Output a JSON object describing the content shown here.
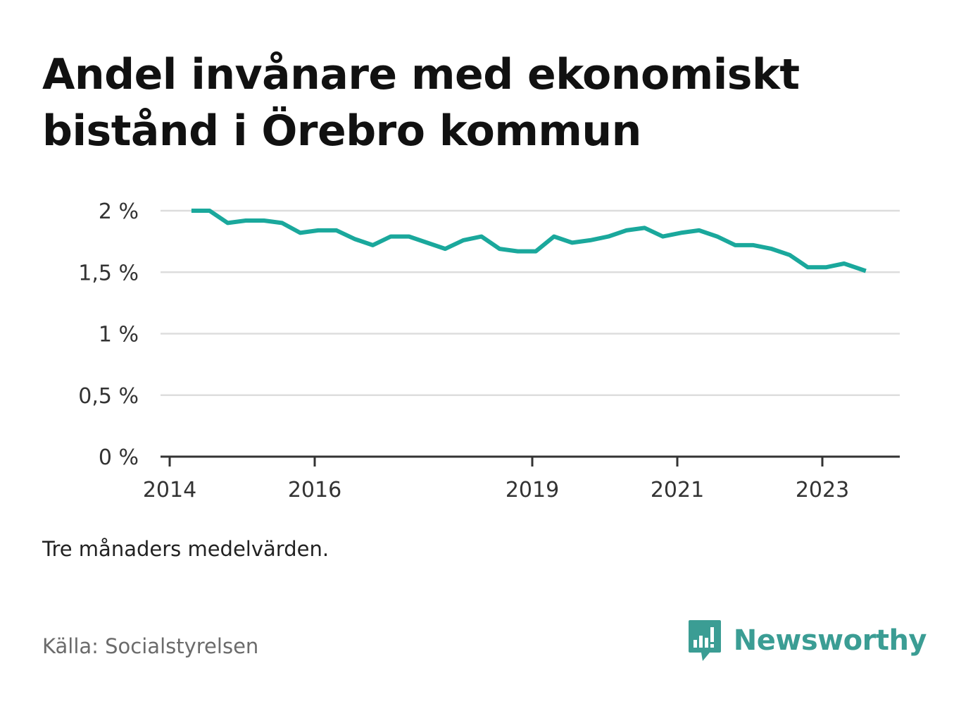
{
  "title": "Andel invånare med ekonomiskt bistånd i Örebro kommun",
  "note": "Tre månaders medelvärden.",
  "source": "Källa: Socialstyrelsen",
  "brand": {
    "name": "Newsworthy",
    "icon": "newsworthy-logo-icon",
    "color": "#3b9d94"
  },
  "colors": {
    "line": "#1aa89c",
    "grid": "#dddddd",
    "axis": "#333333",
    "tick_text": "#333333"
  },
  "chart_data": {
    "type": "line",
    "title": "Andel invånare med ekonomiskt bistånd i Örebro kommun",
    "xlabel": "",
    "ylabel": "",
    "xlim": [
      2014.0,
      2024.3
    ],
    "ylim": [
      0,
      2.0
    ],
    "x_ticks": [
      2014,
      2016,
      2019,
      2021,
      2023
    ],
    "x_tick_labels": [
      "2014",
      "2016",
      "2019",
      "2021",
      "2023"
    ],
    "y_ticks": [
      0,
      0.5,
      1,
      1.5,
      2
    ],
    "y_tick_labels": [
      "0 %",
      "0,5 %",
      "1 %",
      "1,5 %",
      "2 %"
    ],
    "grid": true,
    "legend": "none",
    "series": [
      {
        "x": [
          2014.3,
          2014.55,
          2014.8,
          2015.05,
          2015.3,
          2015.55,
          2015.8,
          2016.05,
          2016.3,
          2016.55,
          2016.8,
          2017.05,
          2017.3,
          2017.55,
          2017.8,
          2018.05,
          2018.3,
          2018.55,
          2018.8,
          2019.05,
          2019.3,
          2019.55,
          2019.8,
          2020.05,
          2020.3,
          2020.55,
          2020.8,
          2021.05,
          2021.3,
          2021.55,
          2021.8,
          2022.05,
          2022.3,
          2022.55,
          2022.8,
          2023.05,
          2023.3,
          2023.6
        ],
        "y": [
          2.0,
          2.0,
          1.9,
          1.92,
          1.92,
          1.9,
          1.82,
          1.84,
          1.84,
          1.77,
          1.72,
          1.79,
          1.79,
          1.74,
          1.69,
          1.76,
          1.79,
          1.69,
          1.67,
          1.67,
          1.79,
          1.74,
          1.76,
          1.79,
          1.84,
          1.86,
          1.79,
          1.82,
          1.84,
          1.79,
          1.72,
          1.72,
          1.69,
          1.64,
          1.54,
          1.54,
          1.57,
          1.51
        ]
      }
    ]
  }
}
